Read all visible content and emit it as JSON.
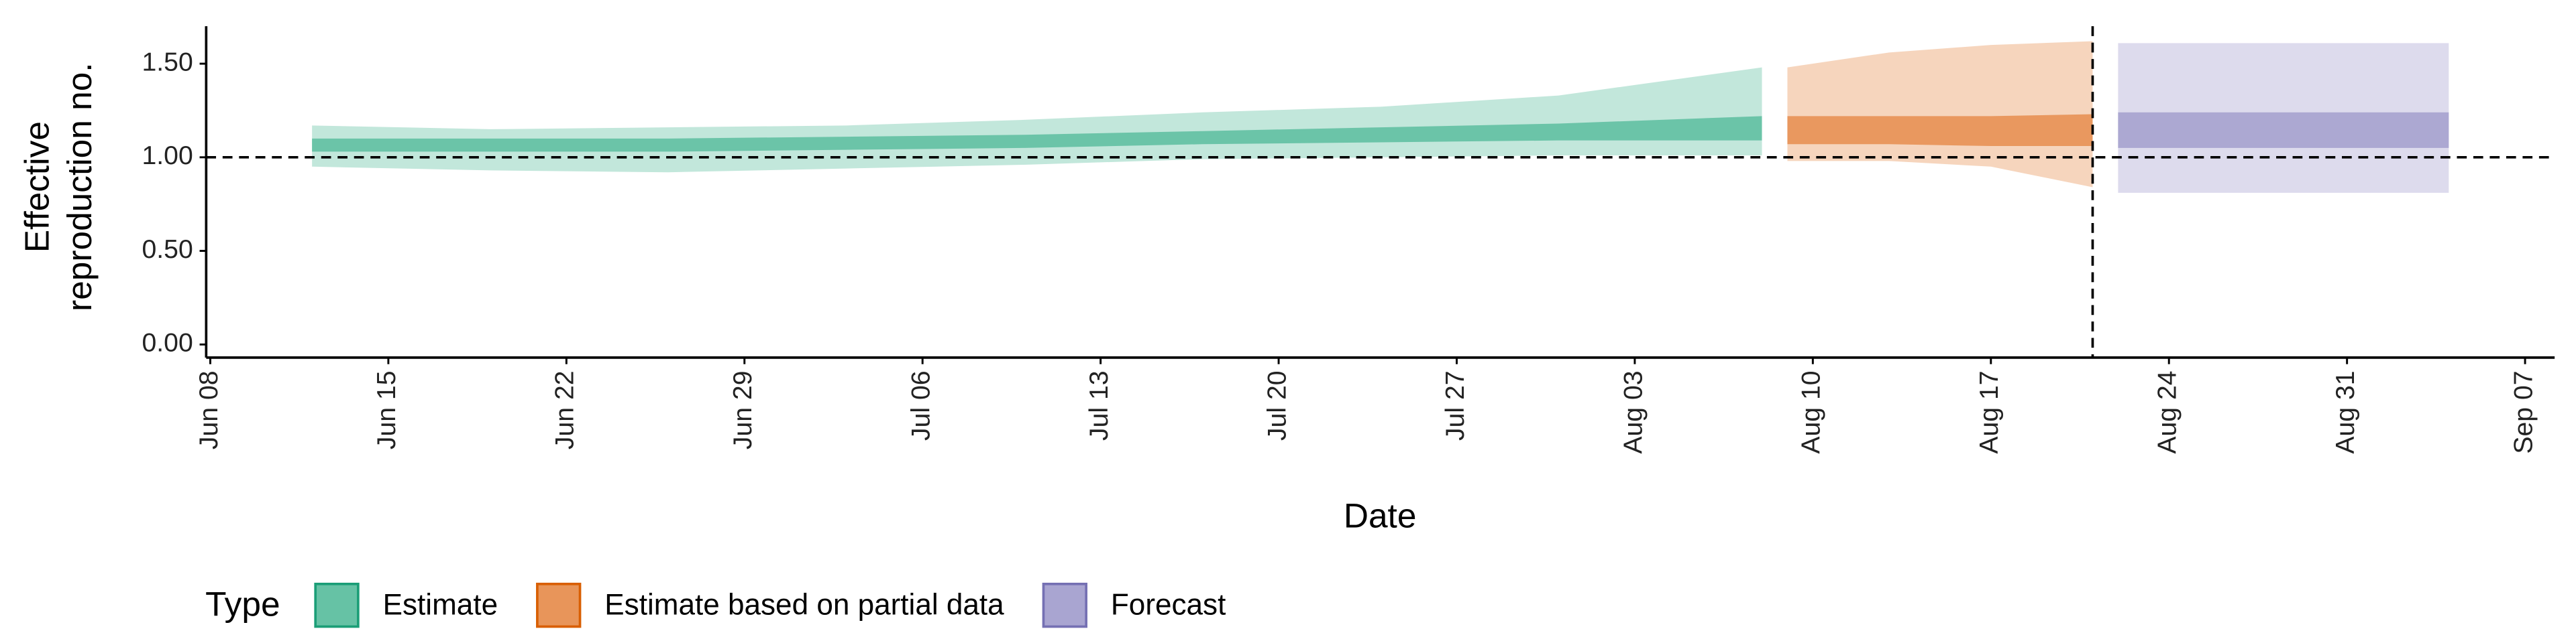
{
  "chart_data": {
    "type": "ribbon",
    "xlabel": "Date",
    "ylabel": [
      "Effective",
      "reproduction no."
    ],
    "xlim": [
      "Jun 08",
      "Sep 07"
    ],
    "xticks": [
      "Jun 08",
      "Jun 15",
      "Jun 22",
      "Jun 29",
      "Jul 06",
      "Jul 13",
      "Jul 20",
      "Jul 27",
      "Aug 03",
      "Aug 10",
      "Aug 17",
      "Aug 24",
      "Aug 31",
      "Sep 07"
    ],
    "ylim": [
      -0.07,
      1.7
    ],
    "yticks": [
      {
        "value": 0,
        "label": "0.00"
      },
      {
        "value": 0.5,
        "label": "0.50"
      },
      {
        "value": 1,
        "label": "1.00"
      },
      {
        "value": 1.5,
        "label": "1.50"
      }
    ],
    "hline": 1,
    "vline": "Aug 21",
    "legend_title": "Type",
    "series": [
      {
        "name": "Estimate",
        "color": "#66c2a5",
        "edge": "#1b9e77",
        "x": [
          "Jun 12",
          "Jun 19",
          "Jun 26",
          "Jul 03",
          "Jul 10",
          "Jul 17",
          "Jul 24",
          "Jul 31",
          "Aug 08"
        ],
        "lower": [
          0.95,
          0.93,
          0.92,
          0.94,
          0.96,
          0.99,
          1.0,
          1.01,
          1.01
        ],
        "upper": [
          1.17,
          1.15,
          1.16,
          1.17,
          1.2,
          1.24,
          1.27,
          1.33,
          1.48
        ],
        "lower_inner": [
          1.03,
          1.03,
          1.03,
          1.04,
          1.05,
          1.07,
          1.08,
          1.09,
          1.09
        ],
        "upper_inner": [
          1.1,
          1.1,
          1.1,
          1.11,
          1.12,
          1.14,
          1.16,
          1.18,
          1.22
        ]
      },
      {
        "name": "Estimate based on partial data",
        "color": "#e8955a",
        "edge": "#d95f02",
        "x": [
          "Aug 09",
          "Aug 13",
          "Aug 17",
          "Aug 21"
        ],
        "lower": [
          0.98,
          0.98,
          0.95,
          0.84
        ],
        "upper": [
          1.48,
          1.56,
          1.6,
          1.62
        ],
        "lower_inner": [
          1.07,
          1.07,
          1.06,
          1.06
        ],
        "upper_inner": [
          1.22,
          1.22,
          1.22,
          1.23
        ]
      },
      {
        "name": "Forecast",
        "color": "#a9a5d1",
        "edge": "#7570b3",
        "x": [
          "Aug 22",
          "Sep 04"
        ],
        "lower": [
          0.81,
          0.81
        ],
        "upper": [
          1.61,
          1.61
        ],
        "lower_inner": [
          1.05,
          1.05
        ],
        "upper_inner": [
          1.24,
          1.24
        ]
      }
    ]
  }
}
